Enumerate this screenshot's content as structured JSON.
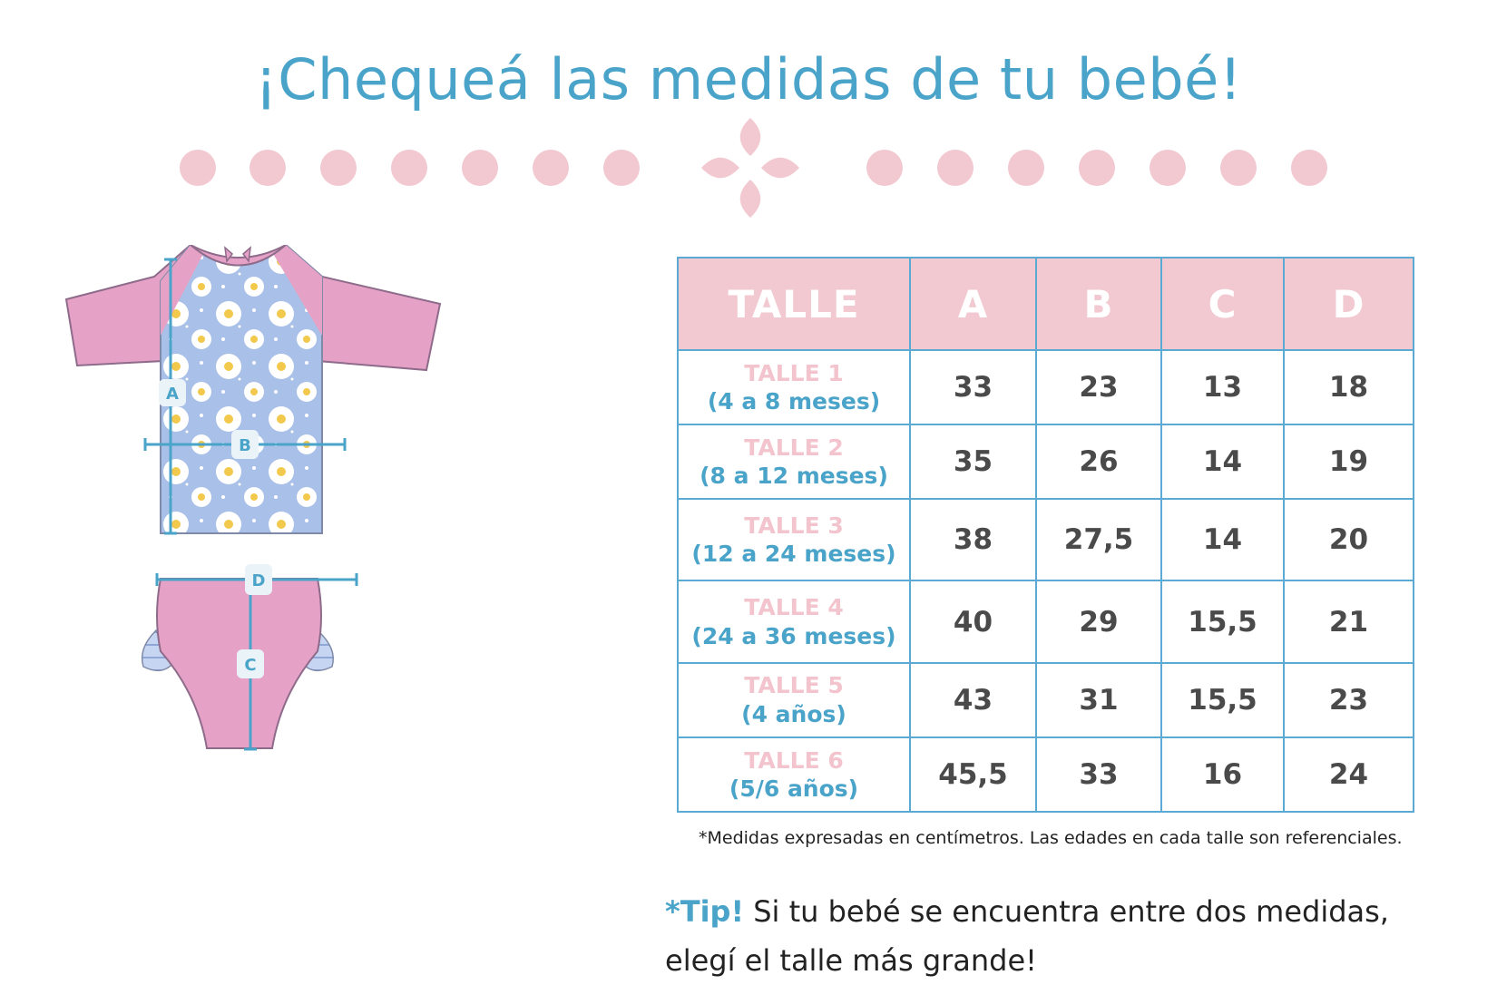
{
  "title": "¡Chequeá las medidas de tu bebé!",
  "colors": {
    "title": "#4aa3c9",
    "pink_dots": "#f2c9d0",
    "table_header_bg": "#f2c9d0",
    "table_border": "#5aaad3",
    "talle_label": "#f3c4cd",
    "age_label": "#4aa3c9",
    "value_text": "#4a4a4a",
    "shirt_sleeves": "#e5a2c6",
    "shirt_body": "#a9c0e8",
    "bottom": "#e5a2c6",
    "measure_lines": "#4aa3c9"
  },
  "illustration": {
    "labels": {
      "a": "A",
      "b": "B",
      "c": "C",
      "d": "D"
    }
  },
  "table": {
    "headers": [
      "TALLE",
      "A",
      "B",
      "C",
      "D"
    ],
    "rows": [
      {
        "talle": "TALLE 1",
        "age": "(4 a 8 meses)",
        "values": [
          "33",
          "23",
          "13",
          "18"
        ]
      },
      {
        "talle": "TALLE 2",
        "age": "(8 a 12 meses)",
        "values": [
          "35",
          "26",
          "14",
          "19"
        ]
      },
      {
        "talle": "TALLE 3",
        "age": "(12 a 24 meses)",
        "values": [
          "38",
          "27,5",
          "14",
          "20"
        ]
      },
      {
        "talle": "TALLE 4",
        "age": "(24 a 36 meses)",
        "values": [
          "40",
          "29",
          "15,5",
          "21"
        ]
      },
      {
        "talle": "TALLE 5",
        "age": "(4 años)",
        "values": [
          "43",
          "31",
          "15,5",
          "23"
        ]
      },
      {
        "talle": "TALLE 6",
        "age": "(5/6 años)",
        "values": [
          "45,5",
          "33",
          "16",
          "24"
        ]
      }
    ]
  },
  "footnote": "*Medidas expresadas en centímetros. Las edades en cada talle son referenciales.",
  "tip": {
    "label": "*Tip!",
    "line1": "Si tu bebé se encuentra entre dos medidas,",
    "line2": "elegí el talle más grande!"
  }
}
